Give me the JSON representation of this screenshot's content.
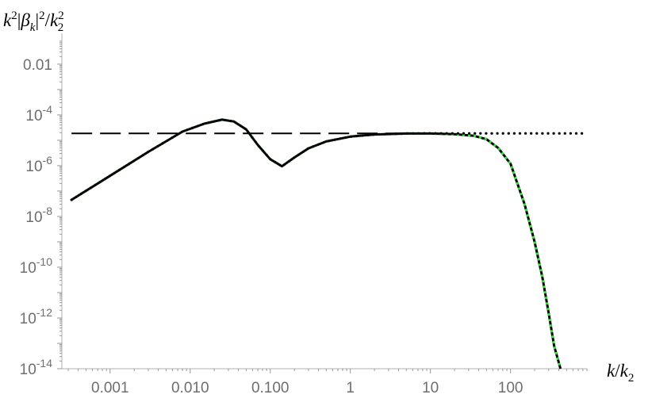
{
  "chart_data": {
    "type": "line",
    "title": "",
    "xlabel": "k/k_2",
    "ylabel": "k^2|β_k|^2/k_2^2",
    "xscale": "log",
    "yscale": "log",
    "xlim": [
      0.00025,
      900
    ],
    "ylim": [
      1e-14,
      0.08
    ],
    "x_ticks": [
      {
        "value": 0.001,
        "label": "0.001"
      },
      {
        "value": 0.01,
        "label": "0.010"
      },
      {
        "value": 0.1,
        "label": "0.100"
      },
      {
        "value": 1,
        "label": "1"
      },
      {
        "value": 10,
        "label": "10"
      },
      {
        "value": 100,
        "label": "100"
      }
    ],
    "y_ticks": [
      {
        "value": 0.01,
        "base": "0.01",
        "exp": ""
      },
      {
        "value": 0.0001,
        "base": "10",
        "exp": "-4"
      },
      {
        "value": 1e-06,
        "base": "10",
        "exp": "-6"
      },
      {
        "value": 1e-08,
        "base": "10",
        "exp": "-8"
      },
      {
        "value": 1e-10,
        "base": "10",
        "exp": "-10"
      },
      {
        "value": 1e-12,
        "base": "10",
        "exp": "-12"
      },
      {
        "value": 1e-14,
        "base": "10",
        "exp": "-14"
      }
    ],
    "grid": false,
    "legend": "none",
    "series": [
      {
        "style": "solid",
        "color": "#000000",
        "x": [
          0.00033,
          0.001,
          0.003,
          0.008,
          0.015,
          0.025,
          0.035,
          0.05,
          0.07,
          0.1,
          0.14,
          0.2,
          0.3,
          0.5,
          1,
          2,
          5,
          10,
          20,
          35,
          50,
          70,
          100,
          150,
          200,
          250,
          300,
          350,
          420
        ],
        "y": [
          4.5e-08,
          4e-07,
          3.5e-06,
          2.2e-05,
          4.5e-05,
          6.5e-05,
          5.5e-05,
          2.7e-05,
          6.5e-06,
          1.8e-06,
          9.5e-07,
          2.1e-06,
          4.8e-06,
          9e-06,
          1.4e-05,
          1.7e-05,
          1.85e-05,
          1.85e-05,
          1.75e-05,
          1.5e-05,
          1.1e-05,
          5e-06,
          1.2e-06,
          3e-08,
          1e-09,
          4e-11,
          1.5e-12,
          8e-14,
          1e-14
        ]
      },
      {
        "style": "dotted",
        "color": "#2ee82e",
        "x": [
          0.00033,
          0.001,
          0.003,
          0.008,
          0.015,
          0.025,
          0.035,
          0.05,
          0.07,
          0.1,
          0.14,
          0.2,
          0.3,
          0.5,
          1,
          2,
          5,
          10,
          20,
          35,
          50,
          70,
          100,
          150,
          200,
          250,
          300,
          350,
          420
        ],
        "y": [
          4.5e-08,
          4e-07,
          3.5e-06,
          2.2e-05,
          4.5e-05,
          6.5e-05,
          5.5e-05,
          2.7e-05,
          6.5e-06,
          1.8e-06,
          9.5e-07,
          2.1e-06,
          4.8e-06,
          9e-06,
          1.4e-05,
          1.7e-05,
          1.85e-05,
          1.85e-05,
          1.75e-05,
          1.5e-05,
          1.1e-05,
          5e-06,
          1.2e-06,
          3e-08,
          1e-09,
          4e-11,
          1.5e-12,
          8e-14,
          1e-14
        ]
      },
      {
        "style": "dotted",
        "color": "#000000",
        "x": [
          0.00033,
          0.001,
          0.003,
          0.008,
          0.015,
          0.025,
          0.035,
          0.05,
          0.07,
          0.1,
          0.14,
          0.2,
          0.3,
          0.5,
          1,
          2,
          5,
          10,
          20,
          50,
          100,
          200,
          500,
          800
        ],
        "y": [
          4.5e-08,
          4e-07,
          3.5e-06,
          2.2e-05,
          4.5e-05,
          6.5e-05,
          5.5e-05,
          2.7e-05,
          6.5e-06,
          1.8e-06,
          9.5e-07,
          2.1e-06,
          4.8e-06,
          9e-06,
          1.4e-05,
          1.7e-05,
          1.85e-05,
          1.88e-05,
          1.88e-05,
          1.88e-05,
          1.88e-05,
          1.88e-05,
          1.88e-05,
          1.88e-05
        ]
      },
      {
        "style": "dashed",
        "color": "#000000",
        "x": [
          0.00033,
          10
        ],
        "y": [
          1.88e-05,
          1.88e-05
        ]
      }
    ]
  }
}
